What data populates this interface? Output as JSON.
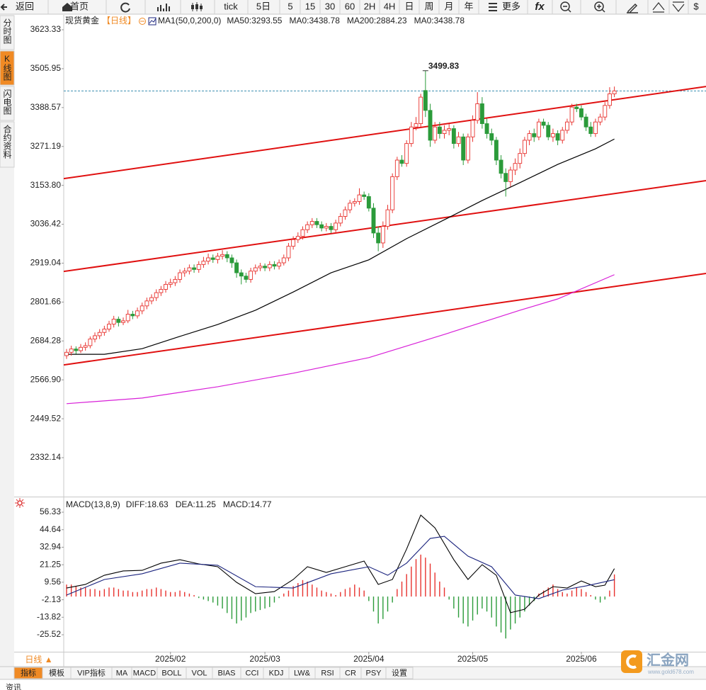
{
  "chart_data": [
    {
      "type": "candlestick",
      "title": "现货黄金",
      "period": "【日线】",
      "indicator": "MA1(50,0,200,0)",
      "legend": [
        {
          "text": "MA50:3293.55",
          "color": "#000000"
        },
        {
          "text": "MA0:3438.78",
          "color": "#1a237e"
        },
        {
          "text": "MA200:2884.23",
          "color": "#d81fd8"
        },
        {
          "text": "MA0:3438.78",
          "color": "#f08a24"
        }
      ],
      "xlim": [
        -0.6,
        135.4
      ],
      "ylim": [
        2216.7,
        3666.1
      ],
      "yticks": [
        3623.33,
        3505.95,
        3388.57,
        3271.19,
        {
          "value": 3153.8,
          "label": "3153.80"
        },
        3036.42,
        2919.04,
        2801.66,
        2684.28,
        {
          "value": 2566.9,
          "label": "2566.90"
        },
        2449.52,
        2332.14
      ],
      "up_color": "#e8322e",
      "down_color": "#2b9b3a",
      "peak_color": "#d9363e",
      "candles": {
        "open": [
          2640,
          2650,
          2660,
          2655,
          2665,
          2670,
          2690,
          2700,
          2710,
          2720,
          2735,
          2750,
          2740,
          2745,
          2765,
          2760,
          2775,
          2790,
          2805,
          2815,
          2830,
          2840,
          2855,
          2860,
          2870,
          2890,
          2895,
          2905,
          2900,
          2915,
          2925,
          2935,
          2930,
          2940,
          2945,
          2935,
          2920,
          2890,
          2880,
          2870,
          2895,
          2905,
          2910,
          2905,
          2915,
          2910,
          2920,
          2935,
          2970,
          2990,
          3000,
          3020,
          3035,
          3045,
          3035,
          3025,
          3030,
          3020,
          3040,
          3060,
          3080,
          3100,
          3105,
          3125,
          3120,
          3085,
          3010,
          2980,
          3030,
          3080,
          3180,
          3230,
          3220,
          3280,
          3330,
          3340,
          3440,
          3380,
          3290,
          3330,
          3310,
          3320,
          3325,
          3280,
          3300,
          3230,
          3300,
          3350,
          3400,
          3340,
          3310,
          3290,
          3230,
          3190,
          3165,
          3200,
          3220,
          3250,
          3290,
          3310,
          3300,
          3345,
          3335,
          3300,
          3310,
          3290,
          3320,
          3345,
          3390,
          3385,
          3360,
          3330,
          3310,
          3345,
          3360,
          3395,
          3430
        ],
        "high": [
          2660,
          2670,
          2668,
          2675,
          2680,
          2698,
          2710,
          2720,
          2730,
          2745,
          2760,
          2758,
          2755,
          2778,
          2775,
          2785,
          2800,
          2815,
          2825,
          2840,
          2850,
          2865,
          2872,
          2880,
          2900,
          2905,
          2915,
          2915,
          2925,
          2938,
          2948,
          2945,
          2950,
          2958,
          2955,
          2945,
          2930,
          2900,
          2890,
          2905,
          2915,
          2920,
          2918,
          2925,
          2925,
          2930,
          2945,
          2980,
          3000,
          3012,
          3030,
          3045,
          3055,
          3055,
          3045,
          3040,
          3040,
          3050,
          3070,
          3090,
          3110,
          3115,
          3145,
          3135,
          3130,
          3100,
          3030,
          3045,
          3095,
          3190,
          3240,
          3245,
          3290,
          3345,
          3360,
          3430,
          3499.83,
          3400,
          3345,
          3345,
          3335,
          3340,
          3335,
          3315,
          3310,
          3310,
          3365,
          3435,
          3420,
          3355,
          3325,
          3300,
          3245,
          3205,
          3210,
          3235,
          3265,
          3300,
          3320,
          3325,
          3355,
          3355,
          3345,
          3325,
          3320,
          3330,
          3355,
          3400,
          3400,
          3395,
          3370,
          3345,
          3355,
          3370,
          3405,
          3450,
          3452
        ],
        "low": [
          2630,
          2640,
          2645,
          2648,
          2655,
          2662,
          2680,
          2690,
          2700,
          2712,
          2725,
          2728,
          2732,
          2738,
          2750,
          2752,
          2765,
          2780,
          2795,
          2805,
          2820,
          2830,
          2845,
          2850,
          2860,
          2878,
          2885,
          2890,
          2890,
          2905,
          2915,
          2920,
          2918,
          2930,
          2922,
          2905,
          2875,
          2855,
          2860,
          2860,
          2885,
          2895,
          2895,
          2895,
          2900,
          2900,
          2912,
          2925,
          2960,
          2980,
          2990,
          3010,
          3025,
          3025,
          3015,
          3015,
          3010,
          3010,
          3030,
          3050,
          3070,
          3090,
          3095,
          3110,
          3075,
          2995,
          2955,
          2965,
          3020,
          3070,
          3170,
          3210,
          3210,
          3270,
          3320,
          3330,
          3360,
          3270,
          3280,
          3295,
          3295,
          3305,
          3265,
          3270,
          3215,
          3220,
          3285,
          3340,
          3325,
          3295,
          3275,
          3215,
          3175,
          3120,
          3150,
          3185,
          3205,
          3240,
          3275,
          3285,
          3290,
          3325,
          3290,
          3285,
          3275,
          3280,
          3310,
          3335,
          3375,
          3350,
          3318,
          3300,
          3300,
          3335,
          3350,
          3385,
          3420
        ],
        "close": [
          2650,
          2660,
          2655,
          2665,
          2670,
          2690,
          2700,
          2710,
          2720,
          2735,
          2750,
          2740,
          2745,
          2765,
          2760,
          2775,
          2790,
          2805,
          2815,
          2830,
          2840,
          2855,
          2860,
          2870,
          2890,
          2895,
          2905,
          2900,
          2915,
          2925,
          2935,
          2930,
          2940,
          2945,
          2935,
          2920,
          2890,
          2880,
          2870,
          2895,
          2905,
          2910,
          2905,
          2915,
          2910,
          2920,
          2935,
          2970,
          2990,
          3000,
          3020,
          3035,
          3045,
          3035,
          3025,
          3030,
          3020,
          3040,
          3060,
          3080,
          3100,
          3105,
          3125,
          3120,
          3085,
          3010,
          2980,
          3030,
          3080,
          3180,
          3230,
          3220,
          3280,
          3330,
          3340,
          3420,
          3380,
          3290,
          3330,
          3310,
          3320,
          3325,
          3280,
          3300,
          3230,
          3300,
          3350,
          3400,
          3340,
          3310,
          3290,
          3230,
          3190,
          3165,
          3200,
          3220,
          3250,
          3290,
          3310,
          3300,
          3345,
          3335,
          3300,
          3310,
          3290,
          3320,
          3345,
          3390,
          3385,
          3360,
          3330,
          3310,
          3345,
          3360,
          3395,
          3430,
          3438.78
        ]
      },
      "series": [
        {
          "color": "#000000",
          "x": [
            0,
            8,
            16,
            24,
            32,
            40,
            48,
            56,
            64,
            72,
            80,
            88,
            96,
            104,
            112,
            116
          ],
          "values": [
            2644,
            2644,
            2661,
            2698,
            2734,
            2777,
            2832,
            2890,
            2929,
            2993,
            3050,
            3108,
            3162,
            3217,
            3264,
            3293.55
          ]
        },
        {
          "color": "#d81fd8",
          "x": [
            0,
            16,
            32,
            48,
            64,
            80,
            96,
            104,
            116
          ],
          "values": [
            2495,
            2512,
            2546,
            2587,
            2634,
            2704,
            2777,
            2811,
            2884.23
          ]
        }
      ],
      "trend_lines": {
        "color": "#e01010",
        "lines": [
          {
            "x": [
              -0.6,
              135.4
            ],
            "values": [
              3174,
              3452
            ]
          },
          {
            "x": [
              -0.6,
              135.4
            ],
            "values": [
              2894,
              3168
            ]
          },
          {
            "x": [
              -0.6,
              135.4
            ],
            "values": [
              2612,
              2888
            ]
          }
        ]
      },
      "last_price": 3438.78,
      "last_price_color": "#3a8fb0"
    },
    {
      "type": "macd",
      "title": "MACD(13,8,9)",
      "legend": [
        {
          "text": "DIFF:18.63",
          "color": "#000000"
        },
        {
          "text": "DEA:11.25",
          "color": "#1a237e"
        },
        {
          "text": "MACD:14.77",
          "color": "#d81fd8"
        }
      ],
      "xlim": [
        -0.6,
        135.4
      ],
      "xticks": [
        {
          "value": 22,
          "label": "2025/02"
        },
        {
          "value": 42,
          "label": "2025/03"
        },
        {
          "value": 64,
          "label": "2025/04"
        },
        {
          "value": 86,
          "label": "2025/05"
        },
        {
          "value": 109,
          "label": "2025/06"
        }
      ],
      "ylim": [
        -36.86,
        65.79
      ],
      "yticks": [
        56.33,
        44.64,
        32.94,
        21.25,
        9.56,
        -2.13,
        -13.82,
        -25.52
      ],
      "histogram": {
        "up_color": "#e8322e",
        "down_color": "#2b9b3a",
        "values": [
          8,
          8,
          7,
          6,
          6,
          5,
          5,
          4,
          5,
          6,
          6,
          5,
          4,
          4,
          3,
          3,
          4,
          5,
          5,
          6,
          5,
          4,
          3,
          3,
          4,
          3,
          2,
          1,
          -1,
          -2,
          -3,
          -4,
          -6,
          -8,
          -11,
          -15,
          -18,
          -16,
          -14,
          -11,
          -10,
          -9,
          -8,
          -7,
          -4,
          -1,
          2,
          4,
          7,
          9,
          11,
          10,
          8,
          6,
          4,
          3,
          2,
          1,
          3,
          5,
          6,
          8,
          6,
          4,
          -3,
          -10,
          -18,
          -15,
          -10,
          -4,
          5,
          10,
          15,
          20,
          25,
          28,
          26,
          22,
          16,
          10,
          6,
          -2,
          -8,
          -14,
          -18,
          -20,
          -16,
          -12,
          -8,
          -10,
          -14,
          -20,
          -24,
          -28,
          -22,
          -18,
          -14,
          -10,
          -6,
          -3,
          2,
          4,
          6,
          8,
          5,
          3,
          2,
          4,
          6,
          5,
          3,
          1,
          -2,
          -4,
          -2,
          4,
          14.77
        ]
      },
      "series": [
        {
          "color": "#000000",
          "x": [
            0,
            4,
            8,
            12,
            16,
            20,
            24,
            28,
            32,
            36,
            40,
            44,
            48,
            51,
            55,
            59,
            63,
            66,
            69,
            72,
            75,
            78,
            82,
            85,
            88,
            91,
            94,
            97,
            100,
            103,
            106,
            109,
            112,
            114,
            116
          ],
          "values": [
            5.7,
            8.1,
            14.2,
            17.1,
            17.5,
            22.3,
            24.6,
            21.8,
            19.9,
            9.5,
            1.9,
            3.3,
            11.4,
            19.9,
            16.1,
            19.9,
            23.7,
            8.1,
            11.4,
            31.7,
            54.4,
            45.9,
            24.6,
            11.4,
            21.3,
            14.2,
            -10.8,
            -8.5,
            1,
            6.6,
            5.7,
            10.4,
            6.6,
            7.6,
            18.63
          ]
        },
        {
          "color": "#1a237e",
          "x": [
            0,
            8,
            16,
            24,
            32,
            40,
            48,
            56,
            64,
            68,
            72,
            77,
            80,
            85,
            90,
            95,
            100,
            105,
            110,
            116
          ],
          "values": [
            1,
            11.4,
            15.2,
            22.3,
            20.9,
            6.6,
            5.7,
            15.2,
            19.9,
            14.2,
            22.3,
            38.8,
            40.2,
            27,
            19.9,
            1,
            -1.4,
            4.3,
            7.1,
            11.25
          ]
        }
      ]
    }
  ],
  "toolbar": [
    "返回",
    "首页",
    "tick",
    "5日",
    "5",
    "15",
    "30",
    "60",
    "2H",
    "4H",
    "日",
    "周",
    "月",
    "年",
    "更多",
    "fx",
    "$"
  ],
  "sidebar": [
    "分时图",
    "K线图",
    "闪电图",
    "合约资料"
  ],
  "period_selector": "日线 ▲",
  "indicator_tabs": [
    "指标",
    "模板",
    "VIP指标",
    "MA",
    "MACD",
    "BOLL",
    "VOL",
    "BIAS",
    "CCI",
    "KDJ",
    "LW&",
    "RSI",
    "CR",
    "PSY",
    "设置"
  ],
  "watermark": {
    "name": "汇金网",
    "url": "www.gold678.com"
  },
  "bottom_tab": "资讯"
}
